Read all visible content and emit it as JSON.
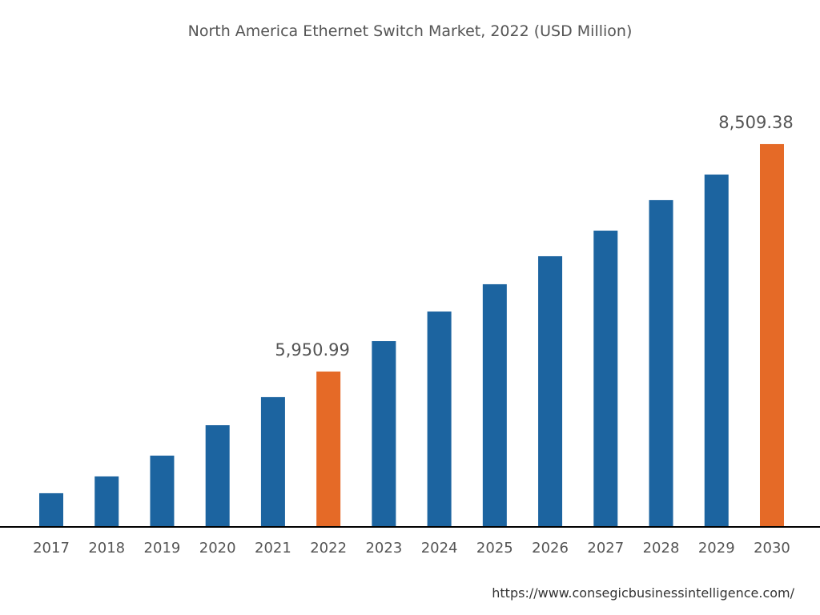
{
  "chart_data": {
    "type": "bar",
    "title": "North America Ethernet Switch Market, 2022 (USD Million)",
    "xlabel": "",
    "ylabel": "",
    "categories": [
      "2017",
      "2018",
      "2019",
      "2020",
      "2021",
      "2022",
      "2023",
      "2024",
      "2025",
      "2026",
      "2027",
      "2028",
      "2029",
      "2030"
    ],
    "values": [
      4582,
      4771,
      5005,
      5347,
      5663,
      5950.99,
      6293,
      6626,
      6933,
      7248,
      7536,
      7879,
      8167,
      8509.38
    ],
    "data_labels": {
      "2022": "5,950.99",
      "2030": "8,509.38"
    },
    "highlight": [
      "2022",
      "2030"
    ],
    "ylim": [
      4212,
      9000
    ],
    "grid": false,
    "colors": {
      "bar": "#1c64a0",
      "highlight": "#e56a27",
      "axis": "#000000"
    }
  },
  "source": "https://www.consegicbusinessintelligence.com/"
}
